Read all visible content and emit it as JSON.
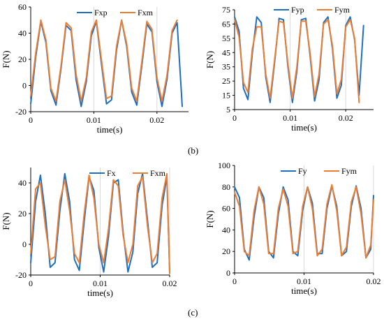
{
  "panel_labels": [
    "(b)",
    "(c)"
  ],
  "colors": {
    "blue": "#1f6fc0",
    "orange": "#ed7d31"
  },
  "chart_data": [
    {
      "type": "line",
      "ylabel": "F(N)",
      "xlabel": "time(s)",
      "xlim": [
        0,
        0.025
      ],
      "ylim": [
        -20,
        60
      ],
      "xticks": [
        "0",
        "0.01",
        "0.02"
      ],
      "xtick_values": [
        0,
        0.01,
        0.02
      ],
      "yticks": [
        "-20",
        "0",
        "20",
        "40",
        "60"
      ],
      "ytick_values": [
        -20,
        0,
        20,
        40,
        60
      ],
      "grid": "vertical",
      "legend": "top-right",
      "series": [
        {
          "name": "Fxp",
          "color": "#1f6fc0",
          "x": [
            0,
            0.0008,
            0.0016,
            0.0024,
            0.0032,
            0.004,
            0.0048,
            0.0056,
            0.0064,
            0.0072,
            0.008,
            0.0088,
            0.0096,
            0.0104,
            0.0112,
            0.012,
            0.0128,
            0.0136,
            0.0144,
            0.0152,
            0.016,
            0.0168,
            0.0176,
            0.0184,
            0.0192,
            0.02,
            0.0208,
            0.0216,
            0.0224,
            0.0232,
            0.024
          ],
          "y": [
            -14,
            22,
            49,
            33,
            -4,
            -15,
            13,
            46,
            42,
            4,
            -16,
            3,
            38,
            49,
            17,
            -14,
            -11,
            27,
            50,
            30,
            -5,
            -15,
            15,
            47,
            41,
            3,
            -16,
            5,
            40,
            48,
            -16
          ]
        },
        {
          "name": "Fxm",
          "color": "#ed7d31",
          "x": [
            0,
            0.0008,
            0.0016,
            0.0024,
            0.0032,
            0.004,
            0.0048,
            0.0056,
            0.0064,
            0.0072,
            0.008,
            0.0088,
            0.0096,
            0.0104,
            0.0112,
            0.012,
            0.0128,
            0.0136,
            0.0144,
            0.0152,
            0.016,
            0.0168,
            0.0176,
            0.0184,
            0.0192,
            0.02,
            0.0208,
            0.0216,
            0.0224,
            0.0232
          ],
          "y": [
            -8,
            25,
            50,
            35,
            -2,
            -12,
            15,
            48,
            44,
            8,
            -12,
            6,
            41,
            50,
            20,
            -10,
            -8,
            30,
            50,
            32,
            -2,
            -12,
            18,
            49,
            43,
            6,
            -12,
            8,
            42,
            50
          ]
        }
      ]
    },
    {
      "type": "line",
      "ylabel": "F(N)",
      "xlabel": "time(s)",
      "xlim": [
        0,
        0.025
      ],
      "ylim": [
        5,
        75
      ],
      "xticks": [
        "0",
        "0.01",
        "0.02"
      ],
      "xtick_values": [
        0,
        0.01,
        0.02
      ],
      "yticks": [
        "5",
        "15",
        "25",
        "35",
        "45",
        "55",
        "65",
        "75"
      ],
      "ytick_values": [
        5,
        15,
        25,
        35,
        45,
        55,
        65,
        75
      ],
      "grid": "vertical",
      "legend": "top-right",
      "series": [
        {
          "name": "Fyp",
          "color": "#1f6fc0",
          "x": [
            0,
            0.0008,
            0.0016,
            0.0024,
            0.0032,
            0.004,
            0.0048,
            0.0056,
            0.0064,
            0.0072,
            0.008,
            0.0088,
            0.0096,
            0.0104,
            0.0112,
            0.012,
            0.0128,
            0.0136,
            0.0144,
            0.0152,
            0.016,
            0.0168,
            0.0176,
            0.0184,
            0.0192,
            0.02,
            0.0208,
            0.0216,
            0.0224,
            0.0232
          ],
          "y": [
            70,
            60,
            20,
            12,
            45,
            70,
            66,
            28,
            10,
            38,
            69,
            68,
            35,
            10,
            32,
            68,
            69,
            42,
            11,
            26,
            66,
            70,
            48,
            13,
            22,
            64,
            70,
            54,
            15,
            64
          ]
        },
        {
          "name": "Fym",
          "color": "#ed7d31",
          "x": [
            0,
            0.0008,
            0.0016,
            0.0024,
            0.0032,
            0.004,
            0.0048,
            0.0056,
            0.0064,
            0.0072,
            0.008,
            0.0088,
            0.0096,
            0.0104,
            0.0112,
            0.012,
            0.0128,
            0.0136,
            0.0144,
            0.0152,
            0.016,
            0.0168,
            0.0176,
            0.0184,
            0.0192,
            0.02,
            0.0208,
            0.0216,
            0.0224
          ],
          "y": [
            68,
            56,
            24,
            17,
            48,
            63,
            63,
            30,
            13,
            40,
            67,
            66,
            37,
            13,
            35,
            67,
            67,
            44,
            14,
            30,
            65,
            68,
            50,
            16,
            26,
            63,
            68,
            55,
            10
          ]
        }
      ]
    },
    {
      "type": "line",
      "ylabel": "F(N)",
      "xlabel": "time(s)",
      "xlim": [
        0,
        0.02
      ],
      "ylim": [
        -20,
        50
      ],
      "xticks": [
        "0",
        "0.01",
        "0.02"
      ],
      "xtick_values": [
        0,
        0.01,
        0.02
      ],
      "yticks": [
        "-20",
        "0",
        "20",
        "40"
      ],
      "ytick_values": [
        -20,
        0,
        20,
        40
      ],
      "grid": "vertical",
      "legend": "top-right",
      "series": [
        {
          "name": "Fx",
          "color": "#1f6fc0",
          "x": [
            0,
            0.0007,
            0.0014,
            0.0021,
            0.0028,
            0.0035,
            0.0042,
            0.0049,
            0.0056,
            0.0063,
            0.007,
            0.0077,
            0.0084,
            0.0091,
            0.0098,
            0.0105,
            0.0112,
            0.0119,
            0.0126,
            0.0133,
            0.014,
            0.0147,
            0.0154,
            0.0161,
            0.0168,
            0.0175,
            0.0182,
            0.0189,
            0.0196,
            0.02
          ],
          "y": [
            -12,
            28,
            45,
            20,
            -15,
            -12,
            22,
            46,
            28,
            -10,
            -17,
            15,
            44,
            35,
            -2,
            -18,
            5,
            40,
            42,
            8,
            -18,
            -5,
            33,
            46,
            16,
            -15,
            -12,
            25,
            44,
            -18
          ]
        },
        {
          "name": "Fxm",
          "color": "#ed7d31",
          "x": [
            0,
            0.0007,
            0.0014,
            0.0021,
            0.0028,
            0.0035,
            0.0042,
            0.0049,
            0.0056,
            0.0063,
            0.007,
            0.0077,
            0.0084,
            0.0091,
            0.0098,
            0.0105,
            0.0112,
            0.0119,
            0.0126,
            0.0133,
            0.014,
            0.0147,
            0.0154,
            0.0161,
            0.0168,
            0.0175,
            0.0182,
            0.0189,
            0.0196,
            0.02
          ],
          "y": [
            -6,
            36,
            40,
            12,
            -10,
            -8,
            28,
            42,
            22,
            -6,
            -12,
            20,
            45,
            30,
            0,
            -12,
            10,
            42,
            38,
            6,
            -12,
            0,
            38,
            44,
            12,
            -12,
            -6,
            30,
            46,
            -19
          ]
        }
      ]
    },
    {
      "type": "line",
      "ylabel": "F(N)",
      "xlabel": "time(s)",
      "xlim": [
        0,
        0.02
      ],
      "ylim": [
        0,
        100
      ],
      "xticks": [
        "0",
        "0.01",
        "0.02"
      ],
      "xtick_values": [
        0,
        0.01,
        0.02
      ],
      "yticks": [
        "0",
        "20",
        "40",
        "60",
        "80",
        "100"
      ],
      "ytick_values": [
        0,
        20,
        40,
        60,
        80,
        100
      ],
      "grid": "vertical",
      "legend": "top-right",
      "series": [
        {
          "name": "Fy",
          "color": "#1f6fc0",
          "x": [
            0,
            0.0007,
            0.0014,
            0.0021,
            0.0028,
            0.0035,
            0.0042,
            0.0049,
            0.0056,
            0.0063,
            0.007,
            0.0077,
            0.0084,
            0.0091,
            0.0098,
            0.0105,
            0.0112,
            0.0119,
            0.0126,
            0.0133,
            0.014,
            0.0147,
            0.0154,
            0.0161,
            0.0168,
            0.0175,
            0.0182,
            0.0189,
            0.0196,
            0.02
          ],
          "y": [
            80,
            70,
            22,
            12,
            52,
            80,
            70,
            20,
            14,
            55,
            80,
            68,
            20,
            16,
            58,
            80,
            65,
            18,
            18,
            60,
            81,
            62,
            16,
            20,
            62,
            81,
            60,
            14,
            22,
            72
          ]
        },
        {
          "name": "Fym",
          "color": "#ed7d31",
          "x": [
            0,
            0.0007,
            0.0014,
            0.0021,
            0.0028,
            0.0035,
            0.0042,
            0.0049,
            0.0056,
            0.0063,
            0.007,
            0.0077,
            0.0084,
            0.0091,
            0.0098,
            0.0105,
            0.0112,
            0.0119,
            0.0126,
            0.0133,
            0.014,
            0.0147,
            0.0154,
            0.0161,
            0.0168,
            0.0175,
            0.0182,
            0.0189,
            0.0196,
            0.02
          ],
          "y": [
            75,
            62,
            20,
            16,
            58,
            80,
            64,
            18,
            18,
            60,
            78,
            62,
            18,
            20,
            62,
            80,
            60,
            16,
            22,
            64,
            82,
            58,
            16,
            24,
            66,
            80,
            55,
            14,
            26,
            68
          ]
        }
      ]
    }
  ]
}
